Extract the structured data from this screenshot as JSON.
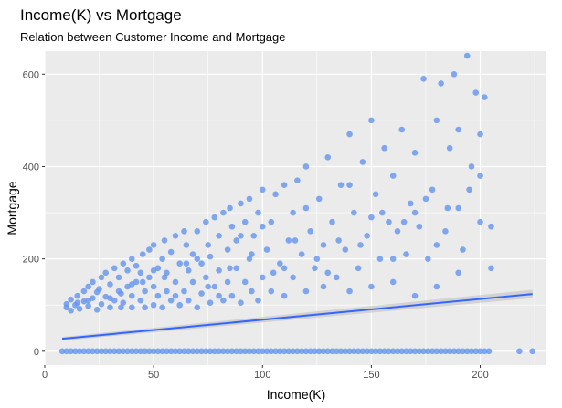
{
  "chart_data": {
    "type": "scatter",
    "title": "Income(K) vs Mortgage",
    "subtitle": "Relation between Customer Income and Mortgage",
    "xlabel": "Income(K)",
    "ylabel": "Mortgage",
    "xlim": [
      0,
      230
    ],
    "ylim": [
      -30,
      650
    ],
    "x_ticks": [
      0,
      50,
      100,
      150,
      200
    ],
    "y_ticks": [
      0,
      200,
      400,
      600
    ],
    "grid": true,
    "legend": "none",
    "point_color": "#6495ed",
    "point_opacity": 0.8,
    "trend_line": {
      "method": "lm",
      "color": "#3366ff",
      "band_color": "#c7c7c7",
      "x_range": [
        8,
        224
      ],
      "y_start": 27,
      "y_end": 124
    },
    "zero_points_x": [
      8,
      10,
      12,
      14,
      16,
      18,
      20,
      22,
      24,
      26,
      28,
      30,
      32,
      34,
      36,
      38,
      40,
      42,
      44,
      46,
      48,
      50,
      52,
      54,
      56,
      58,
      60,
      62,
      64,
      66,
      68,
      70,
      72,
      74,
      76,
      78,
      80,
      82,
      84,
      86,
      88,
      90,
      92,
      94,
      96,
      98,
      100,
      102,
      104,
      106,
      108,
      110,
      112,
      114,
      116,
      118,
      120,
      122,
      124,
      126,
      128,
      130,
      132,
      134,
      136,
      138,
      140,
      142,
      144,
      146,
      148,
      150,
      152,
      154,
      156,
      158,
      160,
      162,
      164,
      166,
      168,
      170,
      172,
      174,
      176,
      178,
      180,
      182,
      184,
      186,
      188,
      190,
      192,
      194,
      196,
      198,
      200,
      202,
      204,
      218,
      224
    ],
    "points": [
      [
        10,
        95
      ],
      [
        10,
        102
      ],
      [
        12,
        88
      ],
      [
        12,
        112
      ],
      [
        14,
        100
      ],
      [
        15,
        120
      ],
      [
        16,
        92
      ],
      [
        18,
        108
      ],
      [
        18,
        130
      ],
      [
        20,
        98
      ],
      [
        20,
        140
      ],
      [
        22,
        115
      ],
      [
        22,
        150
      ],
      [
        24,
        90
      ],
      [
        24,
        128
      ],
      [
        26,
        102
      ],
      [
        26,
        160
      ],
      [
        28,
        118
      ],
      [
        28,
        170
      ],
      [
        30,
        95
      ],
      [
        30,
        145
      ],
      [
        32,
        110
      ],
      [
        32,
        180
      ],
      [
        34,
        130
      ],
      [
        34,
        160
      ],
      [
        35,
        95
      ],
      [
        36,
        105
      ],
      [
        36,
        190
      ],
      [
        38,
        140
      ],
      [
        38,
        175
      ],
      [
        40,
        95
      ],
      [
        40,
        120
      ],
      [
        40,
        200
      ],
      [
        42,
        150
      ],
      [
        42,
        185
      ],
      [
        44,
        110
      ],
      [
        44,
        170
      ],
      [
        45,
        210
      ],
      [
        46,
        95
      ],
      [
        46,
        130
      ],
      [
        48,
        160
      ],
      [
        48,
        220
      ],
      [
        50,
        100
      ],
      [
        50,
        140
      ],
      [
        50,
        230
      ],
      [
        52,
        120
      ],
      [
        52,
        180
      ],
      [
        54,
        95
      ],
      [
        54,
        200
      ],
      [
        55,
        240
      ],
      [
        56,
        130
      ],
      [
        56,
        170
      ],
      [
        58,
        110
      ],
      [
        58,
        215
      ],
      [
        60,
        150
      ],
      [
        60,
        250
      ],
      [
        62,
        100
      ],
      [
        62,
        190
      ],
      [
        64,
        130
      ],
      [
        64,
        260
      ],
      [
        65,
        230
      ],
      [
        66,
        110
      ],
      [
        66,
        175
      ],
      [
        68,
        150
      ],
      [
        68,
        210
      ],
      [
        70,
        95
      ],
      [
        70,
        260
      ],
      [
        72,
        125
      ],
      [
        72,
        190
      ],
      [
        74,
        160
      ],
      [
        74,
        280
      ],
      [
        75,
        230
      ],
      [
        76,
        105
      ],
      [
        76,
        205
      ],
      [
        78,
        140
      ],
      [
        78,
        290
      ],
      [
        80,
        175
      ],
      [
        80,
        250
      ],
      [
        82,
        110
      ],
      [
        82,
        300
      ],
      [
        84,
        150
      ],
      [
        84,
        220
      ],
      [
        85,
        310
      ],
      [
        86,
        120
      ],
      [
        86,
        270
      ],
      [
        88,
        180
      ],
      [
        88,
        240
      ],
      [
        90,
        105
      ],
      [
        90,
        320
      ],
      [
        92,
        150
      ],
      [
        92,
        280
      ],
      [
        94,
        200
      ],
      [
        94,
        330
      ],
      [
        95,
        130
      ],
      [
        96,
        250
      ],
      [
        98,
        110
      ],
      [
        98,
        300
      ],
      [
        100,
        160
      ],
      [
        100,
        350
      ],
      [
        102,
        220
      ],
      [
        104,
        130
      ],
      [
        104,
        280
      ],
      [
        106,
        340
      ],
      [
        108,
        190
      ],
      [
        110,
        120
      ],
      [
        110,
        360
      ],
      [
        112,
        240
      ],
      [
        114,
        160
      ],
      [
        114,
        300
      ],
      [
        116,
        370
      ],
      [
        118,
        210
      ],
      [
        120,
        130
      ],
      [
        120,
        400
      ],
      [
        122,
        260
      ],
      [
        124,
        180
      ],
      [
        126,
        330
      ],
      [
        128,
        140
      ],
      [
        128,
        230
      ],
      [
        130,
        420
      ],
      [
        132,
        280
      ],
      [
        134,
        160
      ],
      [
        136,
        360
      ],
      [
        138,
        220
      ],
      [
        140,
        130
      ],
      [
        140,
        470
      ],
      [
        142,
        300
      ],
      [
        144,
        180
      ],
      [
        146,
        410
      ],
      [
        148,
        250
      ],
      [
        150,
        140
      ],
      [
        150,
        500
      ],
      [
        152,
        340
      ],
      [
        154,
        200
      ],
      [
        156,
        440
      ],
      [
        158,
        280
      ],
      [
        160,
        150
      ],
      [
        160,
        380
      ],
      [
        162,
        260
      ],
      [
        164,
        480
      ],
      [
        166,
        210
      ],
      [
        168,
        320
      ],
      [
        170,
        120
      ],
      [
        170,
        430
      ],
      [
        172,
        270
      ],
      [
        174,
        590
      ],
      [
        176,
        200
      ],
      [
        178,
        350
      ],
      [
        180,
        500
      ],
      [
        180,
        140
      ],
      [
        182,
        580
      ],
      [
        184,
        260
      ],
      [
        186,
        440
      ],
      [
        188,
        600
      ],
      [
        190,
        310
      ],
      [
        190,
        480
      ],
      [
        192,
        220
      ],
      [
        194,
        640
      ],
      [
        196,
        400
      ],
      [
        198,
        560
      ],
      [
        200,
        280
      ],
      [
        200,
        470
      ],
      [
        202,
        550
      ],
      [
        205,
        270
      ],
      [
        205,
        180
      ],
      [
        15,
        105
      ],
      [
        25,
        135
      ],
      [
        35,
        125
      ],
      [
        45,
        150
      ],
      [
        55,
        160
      ],
      [
        65,
        190
      ],
      [
        75,
        140
      ],
      [
        85,
        180
      ],
      [
        95,
        210
      ],
      [
        105,
        170
      ],
      [
        115,
        240
      ],
      [
        125,
        200
      ],
      [
        135,
        240
      ],
      [
        145,
        230
      ],
      [
        155,
        300
      ],
      [
        165,
        280
      ],
      [
        175,
        330
      ],
      [
        185,
        310
      ],
      [
        195,
        350
      ],
      [
        20,
        110
      ],
      [
        30,
        115
      ],
      [
        40,
        145
      ],
      [
        50,
        175
      ],
      [
        60,
        120
      ],
      [
        70,
        200
      ],
      [
        80,
        120
      ],
      [
        90,
        250
      ],
      [
        100,
        270
      ],
      [
        110,
        180
      ],
      [
        120,
        310
      ],
      [
        130,
        170
      ],
      [
        140,
        360
      ],
      [
        150,
        290
      ],
      [
        160,
        200
      ],
      [
        170,
        300
      ],
      [
        180,
        230
      ],
      [
        190,
        170
      ],
      [
        200,
        380
      ]
    ]
  }
}
